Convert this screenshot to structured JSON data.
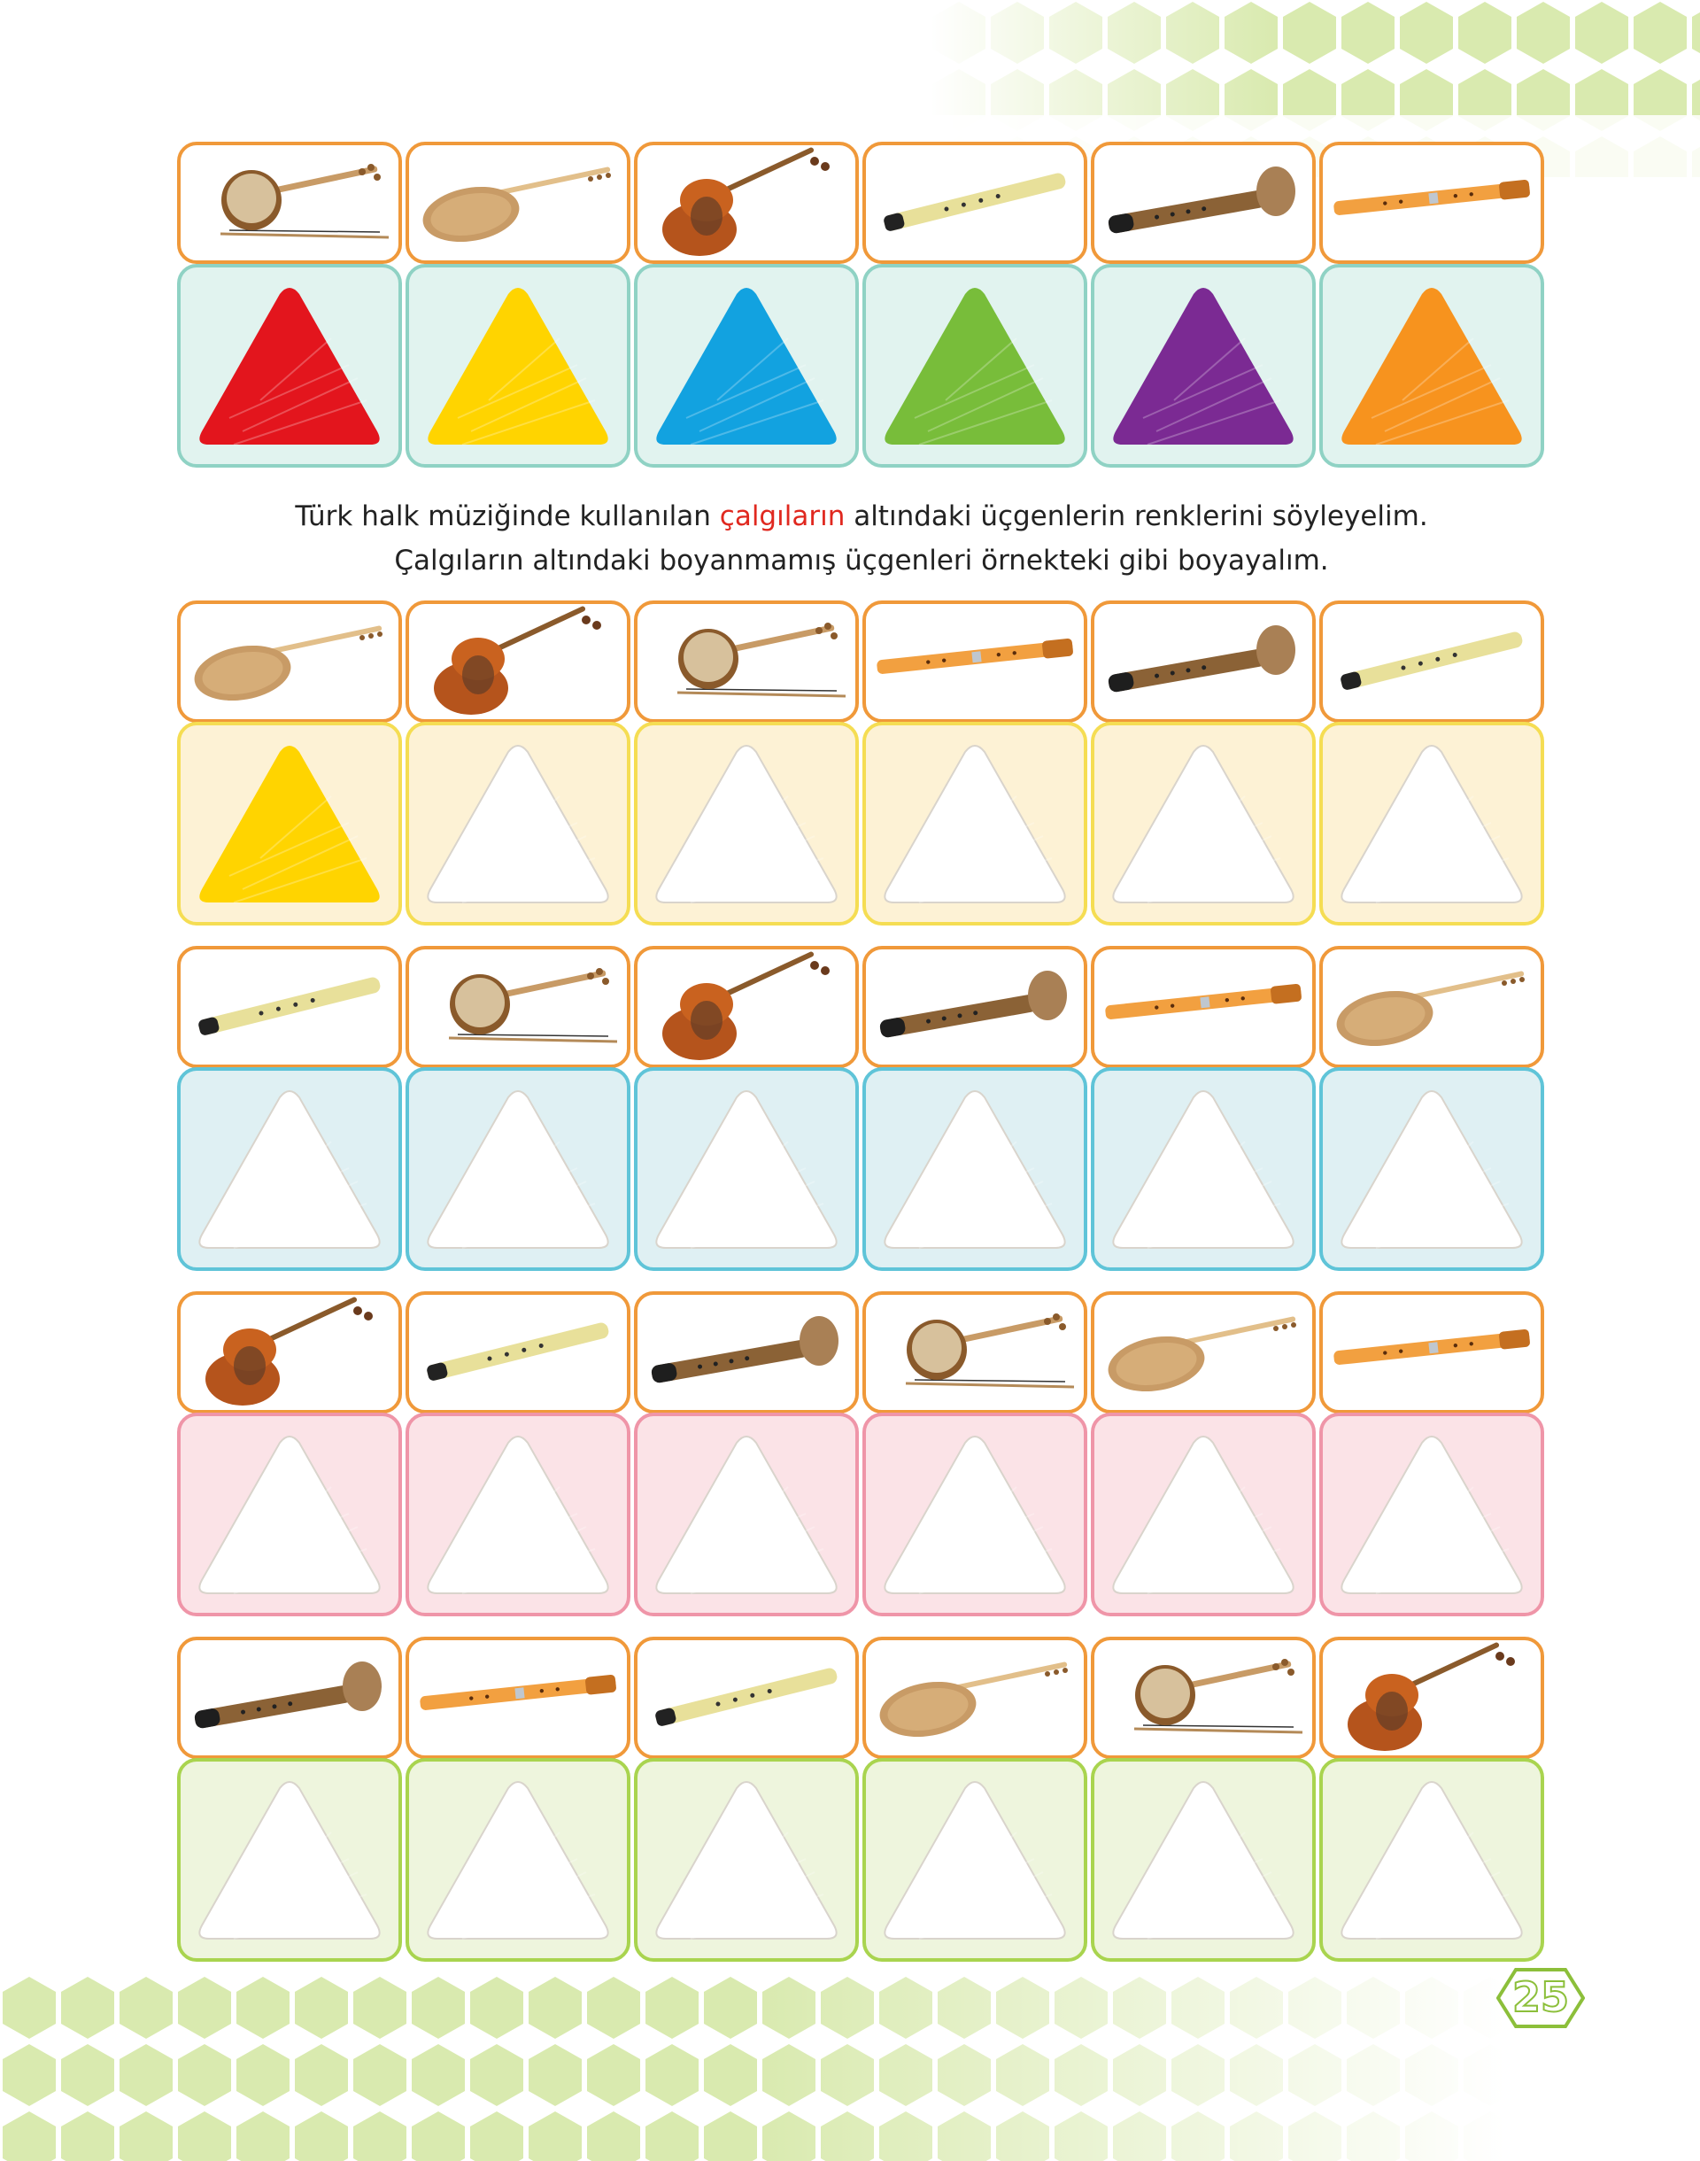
{
  "legend": {
    "instruments": [
      "kemence",
      "baglama",
      "kabak-kemane",
      "kaval",
      "mey",
      "ney"
    ],
    "colors": [
      "#e3151d",
      "#ffd400",
      "#12a2e0",
      "#78bd3a",
      "#7b2a93",
      "#f7931e"
    ]
  },
  "instruction": {
    "line1_before": "Türk halk müziğinde kullanılan ",
    "line1_highlight": "çalgıların",
    "line1_after": "  altındaki üçgenlerin renklerini söyleyelim.",
    "line2": "Çalgıların altındaki boyanmamış üçgenleri örnekteki gibi boyayalım."
  },
  "exercises": [
    {
      "instruments": [
        "baglama",
        "kabak-kemane",
        "kemence",
        "ney",
        "mey",
        "kaval"
      ],
      "filled": [
        "#ffd400",
        null,
        null,
        null,
        null,
        null
      ],
      "panel_bg": "#fdf2d5",
      "panel_border": "#f5dd53"
    },
    {
      "instruments": [
        "kaval",
        "kemence",
        "kabak-kemane",
        "mey",
        "ney",
        "baglama"
      ],
      "filled": [
        null,
        null,
        null,
        null,
        null,
        null
      ],
      "panel_bg": "#dff0f3",
      "panel_border": "#5fc4d8"
    },
    {
      "instruments": [
        "kabak-kemane",
        "kaval",
        "mey",
        "kemence",
        "baglama",
        "ney"
      ],
      "filled": [
        null,
        null,
        null,
        null,
        null,
        null
      ],
      "panel_bg": "#fbe3e7",
      "panel_border": "#ef95a8"
    },
    {
      "instruments": [
        "mey",
        "ney",
        "kaval",
        "baglama",
        "kemence",
        "kabak-kemane"
      ],
      "filled": [
        null,
        null,
        null,
        null,
        null,
        null
      ],
      "panel_bg": "#eef5dd",
      "panel_border": "#a9d44f"
    }
  ],
  "page_number": "25"
}
